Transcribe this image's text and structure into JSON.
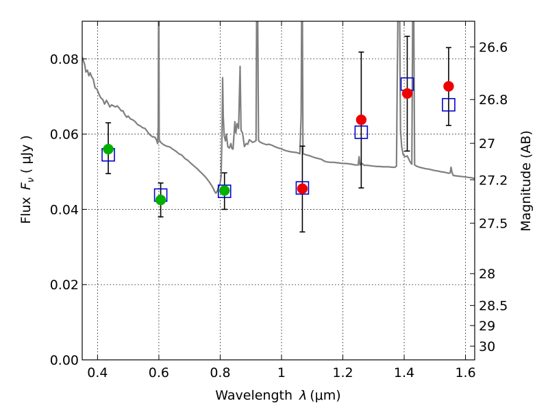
{
  "chart_data": {
    "type": "scatter",
    "xlabel_prefix": "Wavelength",
    "xlabel_symbol": "λ",
    "xlabel_unit": "(μm)",
    "ylabel_prefix": "Flux",
    "ylabel_symbol": "F",
    "ylabel_sub": "ν",
    "ylabel_unit": "( μJy )",
    "y2label": "Magnitude (AB)",
    "xlim": [
      0.35,
      1.63
    ],
    "ylim": [
      0.0,
      0.09
    ],
    "grid": true,
    "x_ticks": [
      0.4,
      0.6,
      0.8,
      1.0,
      1.2,
      1.4,
      1.6
    ],
    "x_tick_labels": [
      "0.4",
      "0.6",
      "0.8",
      "1",
      "1.2",
      "1.4",
      "1.6"
    ],
    "y_ticks": [
      0.0,
      0.02,
      0.04,
      0.06,
      0.08
    ],
    "y_tick_labels": [
      "0.00",
      "0.02",
      "0.04",
      "0.06",
      "0.08"
    ],
    "mag_ticks": [
      26.6,
      26.8,
      27,
      27.2,
      27.5,
      28,
      28.5,
      29,
      30
    ],
    "mag_tick_labels": [
      "26.6",
      "26.8",
      "27",
      "27.2",
      "27.5",
      "28",
      "28.5",
      "29",
      "30"
    ],
    "observed": [
      {
        "x": 0.435,
        "y": 0.056,
        "yerr_low": 0.0495,
        "yerr_high": 0.063,
        "color": "#00b000"
      },
      {
        "x": 0.606,
        "y": 0.0425,
        "yerr_low": 0.038,
        "yerr_high": 0.047,
        "color": "#00b000"
      },
      {
        "x": 0.814,
        "y": 0.045,
        "yerr_low": 0.04,
        "yerr_high": 0.0497,
        "color": "#00b000"
      },
      {
        "x": 1.068,
        "y": 0.0455,
        "yerr_low": 0.034,
        "yerr_high": 0.0568,
        "color": "#ee0000"
      },
      {
        "x": 1.26,
        "y": 0.0638,
        "yerr_low": 0.0457,
        "yerr_high": 0.0818,
        "color": "#ee0000"
      },
      {
        "x": 1.41,
        "y": 0.0708,
        "yerr_low": 0.0555,
        "yerr_high": 0.086,
        "color": "#ee0000"
      },
      {
        "x": 1.545,
        "y": 0.0727,
        "yerr_low": 0.0623,
        "yerr_high": 0.083,
        "color": "#ee0000"
      }
    ],
    "model_bands": [
      {
        "x": 0.435,
        "y": 0.0545
      },
      {
        "x": 0.606,
        "y": 0.0438
      },
      {
        "x": 0.814,
        "y": 0.0448
      },
      {
        "x": 1.068,
        "y": 0.0457
      },
      {
        "x": 1.26,
        "y": 0.0605
      },
      {
        "x": 1.41,
        "y": 0.0733
      },
      {
        "x": 1.545,
        "y": 0.0678
      }
    ],
    "spectrum": [
      [
        0.35,
        0.0805
      ],
      [
        0.358,
        0.0785
      ],
      [
        0.362,
        0.0765
      ],
      [
        0.367,
        0.077
      ],
      [
        0.372,
        0.0755
      ],
      [
        0.376,
        0.0763
      ],
      [
        0.381,
        0.0752
      ],
      [
        0.386,
        0.0746
      ],
      [
        0.392,
        0.0723
      ],
      [
        0.398,
        0.072
      ],
      [
        0.404,
        0.0707
      ],
      [
        0.41,
        0.0697
      ],
      [
        0.417,
        0.0692
      ],
      [
        0.423,
        0.068
      ],
      [
        0.429,
        0.069
      ],
      [
        0.435,
        0.0681
      ],
      [
        0.44,
        0.0672
      ],
      [
        0.446,
        0.0678
      ],
      [
        0.452,
        0.0675
      ],
      [
        0.458,
        0.0672
      ],
      [
        0.464,
        0.0675
      ],
      [
        0.47,
        0.067
      ],
      [
        0.477,
        0.0662
      ],
      [
        0.483,
        0.0662
      ],
      [
        0.489,
        0.0652
      ],
      [
        0.495,
        0.0645
      ],
      [
        0.5,
        0.0648
      ],
      [
        0.508,
        0.064
      ],
      [
        0.515,
        0.0638
      ],
      [
        0.523,
        0.0633
      ],
      [
        0.531,
        0.0625
      ],
      [
        0.539,
        0.0622
      ],
      [
        0.547,
        0.0617
      ],
      [
        0.555,
        0.0615
      ],
      [
        0.563,
        0.0606
      ],
      [
        0.571,
        0.0598
      ],
      [
        0.579,
        0.0593
      ],
      [
        0.587,
        0.0592
      ],
      [
        0.592,
        0.0585
      ],
      [
        0.596,
        0.0575
      ],
      [
        0.598,
        0.062
      ],
      [
        0.599,
        0.095
      ],
      [
        0.6,
        0.095
      ],
      [
        0.601,
        0.0585
      ],
      [
        0.606,
        0.0578
      ],
      [
        0.615,
        0.0572
      ],
      [
        0.625,
        0.0568
      ],
      [
        0.635,
        0.0566
      ],
      [
        0.645,
        0.056
      ],
      [
        0.655,
        0.0555
      ],
      [
        0.665,
        0.0548
      ],
      [
        0.675,
        0.0544
      ],
      [
        0.685,
        0.0535
      ],
      [
        0.695,
        0.053
      ],
      [
        0.705,
        0.0522
      ],
      [
        0.715,
        0.0515
      ],
      [
        0.725,
        0.0508
      ],
      [
        0.735,
        0.05
      ],
      [
        0.745,
        0.0492
      ],
      [
        0.755,
        0.0483
      ],
      [
        0.765,
        0.0472
      ],
      [
        0.773,
        0.0462
      ],
      [
        0.778,
        0.0455
      ],
      [
        0.782,
        0.0447
      ],
      [
        0.786,
        0.0443
      ],
      [
        0.79,
        0.0448
      ],
      [
        0.793,
        0.0455
      ],
      [
        0.797,
        0.0462
      ],
      [
        0.8,
        0.047
      ],
      [
        0.803,
        0.0488
      ],
      [
        0.806,
        0.06
      ],
      [
        0.808,
        0.075
      ],
      [
        0.81,
        0.0648
      ],
      [
        0.813,
        0.0595
      ],
      [
        0.817,
        0.0582
      ],
      [
        0.82,
        0.06
      ],
      [
        0.825,
        0.0566
      ],
      [
        0.83,
        0.0563
      ],
      [
        0.835,
        0.0575
      ],
      [
        0.838,
        0.0562
      ],
      [
        0.842,
        0.056
      ],
      [
        0.848,
        0.0633
      ],
      [
        0.851,
        0.0603
      ],
      [
        0.855,
        0.0628
      ],
      [
        0.86,
        0.0615
      ],
      [
        0.865,
        0.078
      ],
      [
        0.868,
        0.061
      ],
      [
        0.873,
        0.0603
      ],
      [
        0.879,
        0.0567
      ],
      [
        0.885,
        0.0575
      ],
      [
        0.89,
        0.0573
      ],
      [
        0.895,
        0.0585
      ],
      [
        0.9,
        0.0582
      ],
      [
        0.905,
        0.0578
      ],
      [
        0.912,
        0.058
      ],
      [
        0.917,
        0.0583
      ],
      [
        0.919,
        0.095
      ],
      [
        0.922,
        0.095
      ],
      [
        0.925,
        0.0583
      ],
      [
        0.93,
        0.0579
      ],
      [
        0.94,
        0.0575
      ],
      [
        0.95,
        0.0572
      ],
      [
        0.96,
        0.0573
      ],
      [
        0.97,
        0.057
      ],
      [
        0.98,
        0.0566
      ],
      [
        0.99,
        0.0563
      ],
      [
        1.0,
        0.0561
      ],
      [
        1.01,
        0.0557
      ],
      [
        1.02,
        0.0555
      ],
      [
        1.03,
        0.0553
      ],
      [
        1.04,
        0.0552
      ],
      [
        1.05,
        0.0551
      ],
      [
        1.06,
        0.0548
      ],
      [
        1.064,
        0.065
      ],
      [
        1.066,
        0.095
      ],
      [
        1.068,
        0.095
      ],
      [
        1.07,
        0.0548
      ],
      [
        1.08,
        0.0545
      ],
      [
        1.09,
        0.0543
      ],
      [
        1.1,
        0.054
      ],
      [
        1.11,
        0.0537
      ],
      [
        1.12,
        0.0535
      ],
      [
        1.13,
        0.0533
      ],
      [
        1.14,
        0.0528
      ],
      [
        1.15,
        0.0526
      ],
      [
        1.16,
        0.0525
      ],
      [
        1.17,
        0.0525
      ],
      [
        1.18,
        0.0524
      ],
      [
        1.19,
        0.0523
      ],
      [
        1.2,
        0.0522
      ],
      [
        1.21,
        0.0522
      ],
      [
        1.22,
        0.0521
      ],
      [
        1.23,
        0.052
      ],
      [
        1.24,
        0.0518
      ],
      [
        1.25,
        0.0518
      ],
      [
        1.253,
        0.054
      ],
      [
        1.256,
        0.0518
      ],
      [
        1.262,
        0.0522
      ],
      [
        1.27,
        0.0517
      ],
      [
        1.28,
        0.0517
      ],
      [
        1.29,
        0.0516
      ],
      [
        1.3,
        0.0515
      ],
      [
        1.31,
        0.0514
      ],
      [
        1.32,
        0.0514
      ],
      [
        1.33,
        0.0513
      ],
      [
        1.34,
        0.0513
      ],
      [
        1.35,
        0.0513
      ],
      [
        1.36,
        0.0512
      ],
      [
        1.37,
        0.0512
      ],
      [
        1.375,
        0.0515
      ],
      [
        1.377,
        0.07
      ],
      [
        1.38,
        0.0955
      ],
      [
        1.385,
        0.0955
      ],
      [
        1.388,
        0.061
      ],
      [
        1.392,
        0.0565
      ],
      [
        1.397,
        0.0545
      ],
      [
        1.403,
        0.054
      ],
      [
        1.41,
        0.0542
      ],
      [
        1.42,
        0.0525
      ],
      [
        1.425,
        0.052
      ],
      [
        1.428,
        0.0955
      ],
      [
        1.431,
        0.0955
      ],
      [
        1.434,
        0.0518
      ],
      [
        1.44,
        0.0515
      ],
      [
        1.45,
        0.0512
      ],
      [
        1.46,
        0.051
      ],
      [
        1.47,
        0.0508
      ],
      [
        1.48,
        0.0507
      ],
      [
        1.49,
        0.0505
      ],
      [
        1.5,
        0.0503
      ],
      [
        1.51,
        0.0502
      ],
      [
        1.52,
        0.05
      ],
      [
        1.53,
        0.0499
      ],
      [
        1.54,
        0.0497
      ],
      [
        1.545,
        0.0496
      ],
      [
        1.55,
        0.0497
      ],
      [
        1.553,
        0.0512
      ],
      [
        1.556,
        0.0498
      ],
      [
        1.56,
        0.049
      ],
      [
        1.57,
        0.0489
      ],
      [
        1.58,
        0.0488
      ],
      [
        1.59,
        0.0487
      ],
      [
        1.6,
        0.0486
      ],
      [
        1.61,
        0.0485
      ],
      [
        1.62,
        0.0484
      ],
      [
        1.63,
        0.0482
      ]
    ],
    "spectrum_color": "#7f7f7f",
    "marker_edge_color": "#0000cc",
    "errorbar_color": "#000000"
  }
}
